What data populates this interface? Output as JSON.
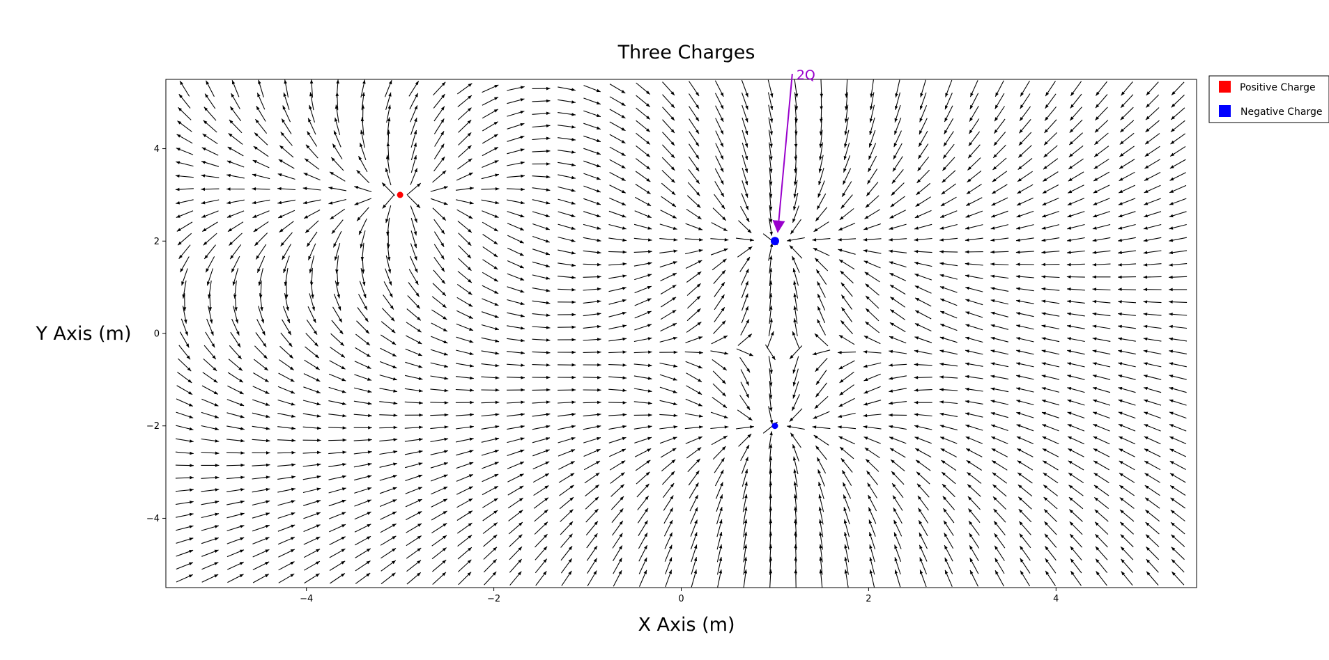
{
  "chart_data": {
    "type": "quiver",
    "title": "Three Charges",
    "xlabel": "X Axis (m)",
    "ylabel": "Y Axis (m)",
    "xlim": [
      -5.5,
      5.5
    ],
    "ylim": [
      -5.5,
      5.5
    ],
    "xticks": [
      -4,
      -2,
      0,
      2,
      4
    ],
    "yticks": [
      -4,
      -2,
      0,
      2,
      4
    ],
    "xtick_labels": [
      "−4",
      "−2",
      "0",
      "2",
      "4"
    ],
    "ytick_labels": [
      "−4",
      "−2",
      "0",
      "2",
      "4"
    ],
    "grid": false,
    "legend_position": "outside-top-right",
    "legend": [
      {
        "label": "Positive Charge",
        "color": "#ff0000"
      },
      {
        "label": "Negative Charge",
        "color": "#0000ff"
      }
    ],
    "field_grid": {
      "x_min": -5.3,
      "x_max": 5.3,
      "y_min": -5.3,
      "y_max": 5.3,
      "count": 40
    },
    "arrow_color": "#000000",
    "charges": [
      {
        "name": "positive-charge",
        "x": -3,
        "y": 3,
        "q": 1,
        "color": "#ff0000"
      },
      {
        "name": "negative-charge-2q",
        "x": 1,
        "y": 2,
        "q": -2,
        "color": "#0000ff"
      },
      {
        "name": "negative-charge",
        "x": 1,
        "y": -2,
        "q": -1,
        "color": "#0000ff"
      }
    ],
    "annotations": [
      {
        "text": "2Q",
        "x": 1.2,
        "y": 5.65,
        "arrow_to": {
          "x": 1.03,
          "y": 2.2
        },
        "color": "#9900cc"
      }
    ]
  }
}
